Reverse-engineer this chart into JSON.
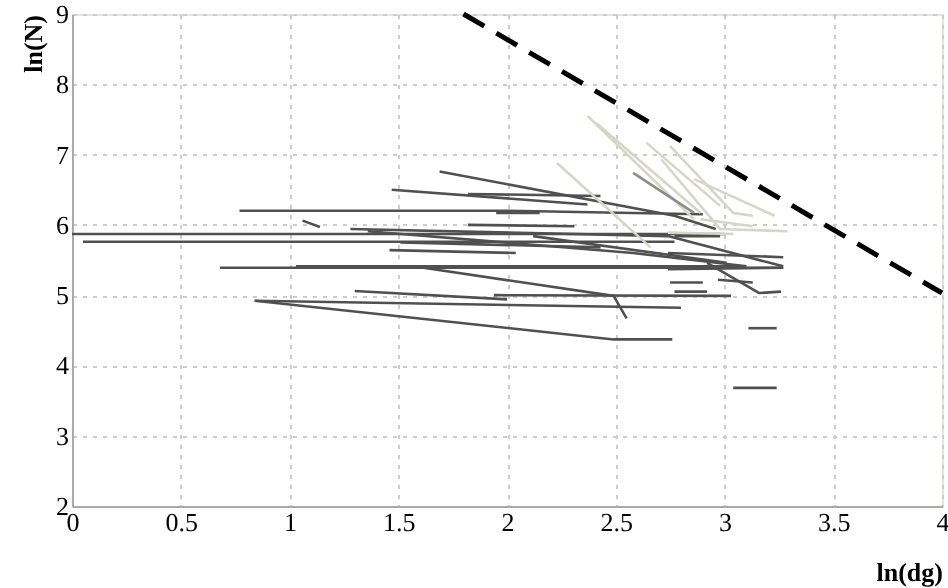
{
  "chart_data": {
    "type": "line",
    "xlabel": "ln(dg)",
    "ylabel": "ln(N)",
    "xlim": [
      0,
      4
    ],
    "ylim": [
      2,
      9
    ],
    "xticks": [
      0,
      0.5,
      1,
      1.5,
      2,
      2.5,
      3,
      3.5,
      4
    ],
    "yticks": [
      2,
      3,
      4,
      5,
      6,
      7,
      8,
      9
    ],
    "grid": true,
    "marker": "none",
    "line_style": "solid",
    "series": [
      {
        "color": "#505050",
        "x": [
          0,
          3.0
        ],
        "values": [
          5.87,
          5.87
        ]
      },
      {
        "color": "#505050",
        "x": [
          0.05,
          2.77
        ],
        "values": [
          5.76,
          5.76
        ]
      },
      {
        "color": "#505050",
        "x": [
          0.77,
          2.0,
          2.9
        ],
        "values": [
          6.2,
          6.2,
          6.15
        ]
      },
      {
        "color": "#505050",
        "x": [
          0.68,
          3.27
        ],
        "values": [
          5.39,
          5.39
        ]
      },
      {
        "color": "#505050",
        "x": [
          1.03,
          3.1
        ],
        "values": [
          5.41,
          5.41
        ]
      },
      {
        "color": "#505050",
        "x": [
          1.06,
          1.14
        ],
        "values": [
          6.06,
          5.97
        ]
      },
      {
        "color": "#505050",
        "x": [
          0.84,
          2.8
        ],
        "values": [
          4.92,
          4.82
        ]
      },
      {
        "color": "#505050",
        "x": [
          0.84,
          2.49,
          2.76
        ],
        "values": [
          4.92,
          4.37,
          4.37
        ]
      },
      {
        "color": "#505050",
        "x": [
          1.3,
          2.0
        ],
        "values": [
          5.06,
          4.94
        ]
      },
      {
        "color": "#505050",
        "x": [
          1.94,
          3.03
        ],
        "values": [
          5.0,
          4.99
        ]
      },
      {
        "color": "#505050",
        "x": [
          1.57,
          2.49,
          2.55
        ],
        "values": [
          5.41,
          4.99,
          4.67
        ]
      },
      {
        "color": "#505050",
        "x": [
          1.46,
          2.04
        ],
        "values": [
          5.64,
          5.6
        ]
      },
      {
        "color": "#505050",
        "x": [
          1.28,
          2.74,
          3.27
        ],
        "values": [
          5.94,
          5.84,
          5.41
        ]
      },
      {
        "color": "#505050",
        "x": [
          1.47,
          2.37
        ],
        "values": [
          6.5,
          6.29
        ]
      },
      {
        "color": "#505050",
        "x": [
          1.69,
          2.77,
          2.96
        ],
        "values": [
          6.76,
          6.13,
          5.94
        ]
      },
      {
        "color": "#505050",
        "x": [
          1.82,
          2.43
        ],
        "values": [
          6.44,
          6.41
        ]
      },
      {
        "color": "#505050",
        "x": [
          1.95,
          2.15
        ],
        "values": [
          6.17,
          6.17
        ]
      },
      {
        "color": "#505050",
        "x": [
          1.82,
          2.31
        ],
        "values": [
          6.0,
          5.98
        ]
      },
      {
        "color": "#505050",
        "x": [
          2.74,
          3.27
        ],
        "values": [
          5.6,
          5.54
        ]
      },
      {
        "color": "#505050",
        "x": [
          2.74,
          3.27
        ],
        "values": [
          5.37,
          5.39
        ]
      },
      {
        "color": "#505050",
        "x": [
          2.92,
          3.16,
          3.26
        ],
        "values": [
          5.46,
          5.03,
          5.05
        ]
      },
      {
        "color": "#505050",
        "x": [
          2.75,
          2.9
        ],
        "values": [
          5.18,
          5.18
        ]
      },
      {
        "color": "#505050",
        "x": [
          2.77,
          2.92
        ],
        "values": [
          5.05,
          5.05
        ]
      },
      {
        "color": "#505050",
        "x": [
          2.97,
          3.13
        ],
        "values": [
          5.22,
          5.18
        ]
      },
      {
        "color": "#505050",
        "x": [
          3.11,
          3.24
        ],
        "values": [
          4.53,
          4.53
        ]
      },
      {
        "color": "#505050",
        "x": [
          3.04,
          3.24
        ],
        "values": [
          3.68,
          3.68
        ]
      },
      {
        "color": "#505050",
        "x": [
          2.77,
          2.98
        ],
        "values": [
          5.84,
          5.84
        ]
      },
      {
        "color": "#505050",
        "x": [
          1.36,
          2.58,
          3.1
        ],
        "values": [
          5.91,
          5.6,
          5.41
        ]
      },
      {
        "color": "#505050",
        "x": [
          2.12,
          3.01
        ],
        "values": [
          5.84,
          5.46
        ]
      },
      {
        "color": "#505050",
        "x": [
          1.51,
          2.43
        ],
        "values": [
          5.75,
          5.68
        ]
      },
      {
        "color": "#d6d6c6",
        "x": [
          2.37,
          2.86
        ],
        "values": [
          7.55,
          6.08
        ]
      },
      {
        "color": "#d6d6c6",
        "x": [
          2.23,
          2.66
        ],
        "values": [
          6.88,
          5.68
        ]
      },
      {
        "color": "#d6d6c6",
        "x": [
          2.41,
          2.89
        ],
        "values": [
          7.45,
          6.17
        ]
      },
      {
        "color": "#d6d6c6",
        "x": [
          2.64,
          2.98
        ],
        "values": [
          7.17,
          6.27
        ]
      },
      {
        "color": "#d6d6c6",
        "x": [
          2.75,
          3.04,
          3.13
        ],
        "values": [
          7.12,
          6.17,
          6.13
        ]
      },
      {
        "color": "#d6d6c6",
        "x": [
          2.86,
          3.23
        ],
        "values": [
          6.65,
          6.13
        ]
      },
      {
        "color": "#d6d6c6",
        "x": [
          2.71,
          2.98,
          3.29
        ],
        "values": [
          6.93,
          5.94,
          5.91
        ]
      },
      {
        "color": "#8c8c8c",
        "x": [
          2.58,
          2.86
        ],
        "values": [
          6.74,
          6.17
        ]
      },
      {
        "color": "#d6d6c6",
        "x": [
          2.89,
          3.13
        ],
        "values": [
          6.08,
          5.98
        ]
      },
      {
        "color": "#d6d6c6",
        "x": [
          2.74,
          3.04
        ],
        "values": [
          5.89,
          5.87
        ]
      },
      {
        "color": "#000000",
        "x": [
          1.8,
          4
        ],
        "values": [
          9,
          5.03
        ],
        "line_style": "dashed"
      }
    ]
  }
}
